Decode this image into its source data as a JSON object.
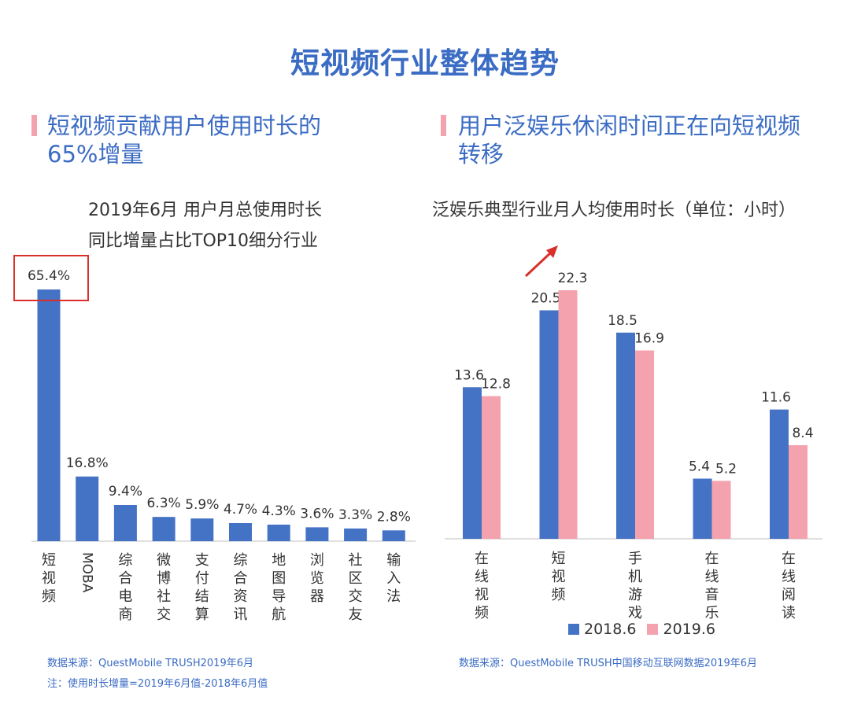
{
  "main_title": "短视频行业整体趋势",
  "left": {
    "section_title_line1": "短视频贡献用户使用时长的",
    "section_title_line2": "65%增量",
    "subtitle_line1": "2019年6月 用户月总使用时长",
    "subtitle_line2": "同比增量占比TOP10细分行业",
    "source": "数据来源：QuestMobile TRUSH2019年6月",
    "note": "注：使用时长增量=2019年6月值-2018年6月值"
  },
  "right": {
    "section_title_line1": "用户泛娱乐休闲时间正在向短视频",
    "section_title_line2": "转移",
    "subtitle": "泛娱乐典型行业月人均使用时长（单位：小时）",
    "source": "数据来源：QuestMobile TRUSH中国移动互联网数据2019年6月"
  },
  "colors": {
    "blue": "#4472c4",
    "pink": "#f4a2ae",
    "title_blue": "#3b6cc4",
    "highlight_red": "#d9302c",
    "arrow_red": "#d9302c"
  },
  "chart_data": [
    {
      "type": "bar",
      "categories": [
        "短视频",
        "MOBA",
        "综合电商",
        "微博社交",
        "支付结算",
        "综合资讯",
        "地图导航",
        "浏览器",
        "社区交友",
        "输入法"
      ],
      "values": [
        65.4,
        16.8,
        9.4,
        6.3,
        5.9,
        4.7,
        4.3,
        3.6,
        3.3,
        2.8
      ],
      "labels": [
        "65.4%",
        "16.8%",
        "9.4%",
        "6.3%",
        "5.9%",
        "4.7%",
        "4.3%",
        "3.6%",
        "3.3%",
        "2.8%"
      ],
      "title": "2019年6月 用户月总使用时长 同比增量占比TOP10细分行业",
      "xlabel": "",
      "ylabel": "",
      "ylim": [
        0,
        65.4
      ],
      "grid": false,
      "highlight_category": "短视频"
    },
    {
      "type": "bar",
      "categories": [
        "在线视频",
        "短视频",
        "手机游戏",
        "在线音乐",
        "在线阅读"
      ],
      "series": [
        {
          "name": "2018.6",
          "values": [
            13.6,
            20.5,
            18.5,
            5.4,
            11.6
          ]
        },
        {
          "name": "2019.6",
          "values": [
            12.8,
            22.3,
            16.9,
            5.2,
            8.4
          ]
        }
      ],
      "title": "泛娱乐典型行业月人均使用时长（单位：小时）",
      "xlabel": "",
      "ylabel": "",
      "ylim": [
        0,
        22.3
      ],
      "grid": false,
      "legend": "bottom"
    }
  ]
}
